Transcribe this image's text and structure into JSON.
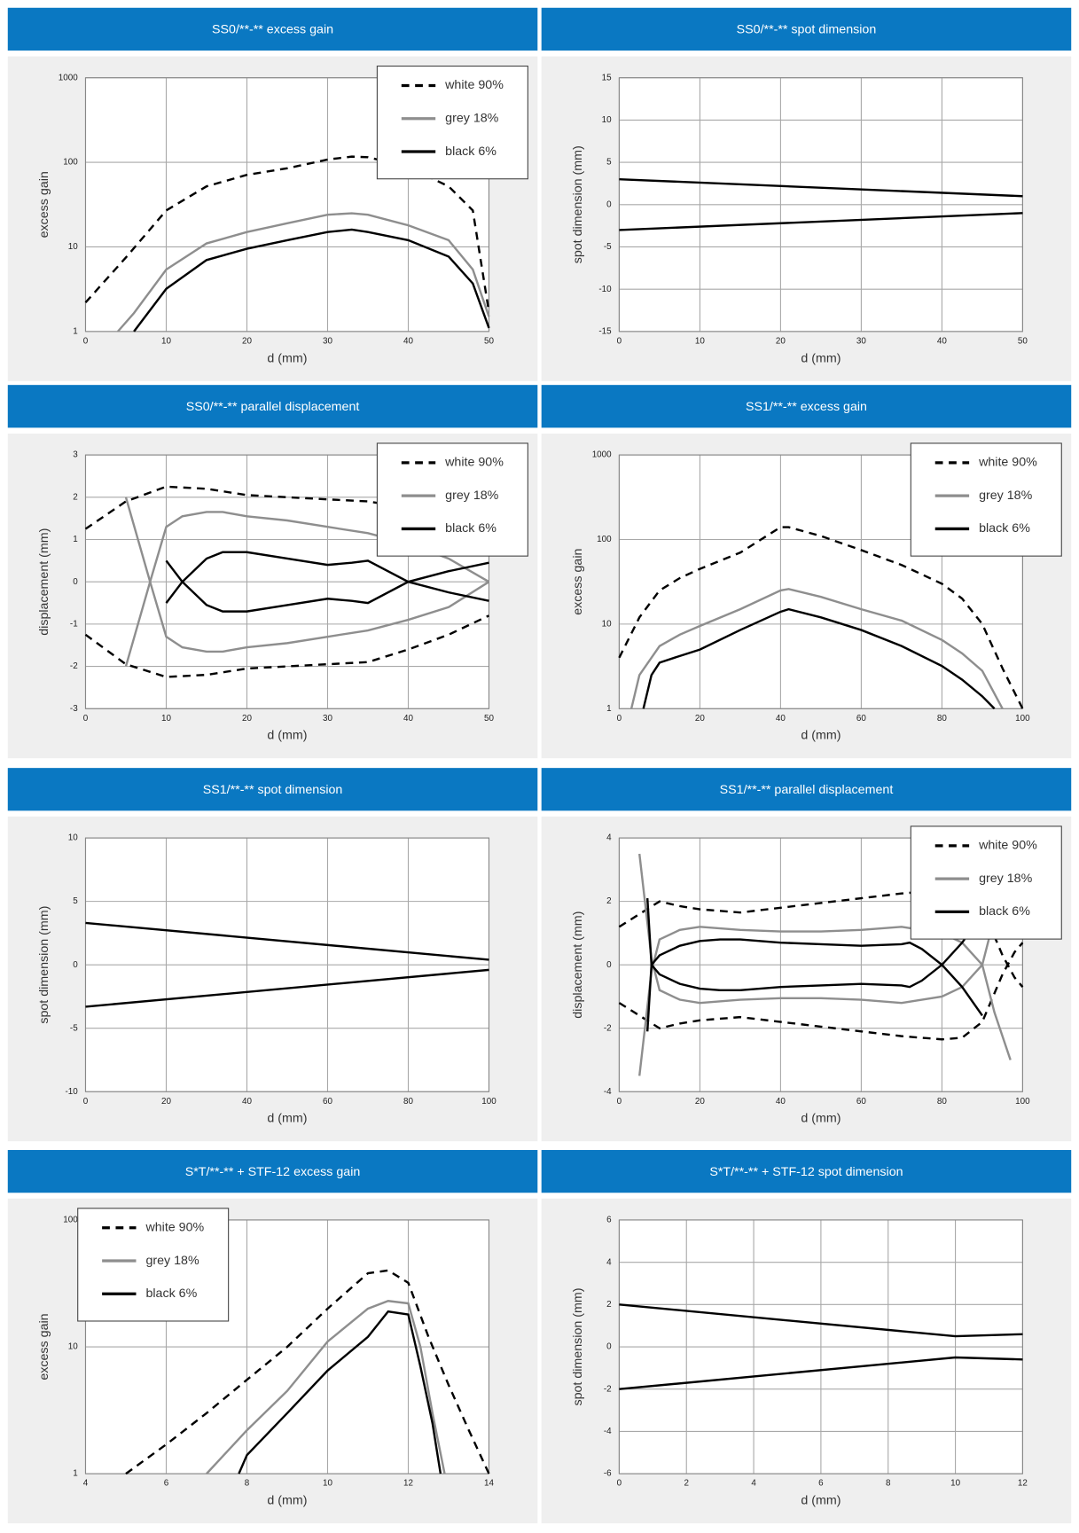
{
  "chart_data": [
    {
      "type": "line",
      "title": "SS0/**-** excess gain",
      "xlabel": "d (mm)",
      "ylabel": "excess gain",
      "xlim": [
        0,
        50
      ],
      "xticks": [
        0,
        10,
        20,
        30,
        40,
        50
      ],
      "ylim": [
        1,
        1000
      ],
      "yticks": [
        1,
        10,
        100,
        1000
      ],
      "yscale": "log",
      "grid": true,
      "legend": "upper right",
      "series": [
        {
          "name": "white 90%",
          "color": "#000000",
          "dash": "dashed",
          "x": [
            0,
            5,
            10,
            15,
            20,
            25,
            30,
            33,
            35,
            40,
            45,
            48,
            50
          ],
          "values": [
            2.2,
            7.5,
            27,
            52,
            71,
            85,
            108,
            117,
            115,
            88,
            52,
            27,
            1.7
          ]
        },
        {
          "name": "grey 18%",
          "color": "#8e8e8e",
          "dash": "solid",
          "x": [
            4,
            6,
            10,
            15,
            20,
            25,
            30,
            33,
            35,
            40,
            45,
            48,
            50
          ],
          "values": [
            1,
            1.65,
            5.4,
            11,
            15,
            19,
            24,
            25,
            24,
            18,
            12,
            5.4,
            1.5
          ]
        },
        {
          "name": "black 6%",
          "color": "#000000",
          "dash": "solid",
          "x": [
            6,
            10,
            15,
            20,
            25,
            30,
            33,
            35,
            40,
            45,
            48,
            50
          ],
          "values": [
            1,
            3.2,
            7,
            9.5,
            12,
            15,
            16,
            15,
            12,
            7.7,
            3.7,
            1.1
          ]
        }
      ]
    },
    {
      "type": "line",
      "title": "SS0/**-** spot dimension",
      "xlabel": "d (mm)",
      "ylabel": "spot dimension (mm)",
      "xlim": [
        0,
        50
      ],
      "xticks": [
        0,
        10,
        20,
        30,
        40,
        50
      ],
      "ylim": [
        -15,
        15
      ],
      "yticks": [
        -15,
        -10,
        -5,
        0,
        5,
        10,
        15
      ],
      "grid": true,
      "series": [
        {
          "color": "#000000",
          "dash": "solid",
          "x": [
            0,
            50
          ],
          "values": [
            3,
            1
          ]
        },
        {
          "color": "#000000",
          "dash": "solid",
          "x": [
            0,
            50
          ],
          "values": [
            -3,
            -1
          ]
        }
      ]
    },
    {
      "type": "line",
      "title": "SS0/**-** parallel displacement",
      "xlabel": "d (mm)",
      "ylabel": "displacement (mm)",
      "xlim": [
        0,
        50
      ],
      "xticks": [
        0,
        10,
        20,
        30,
        40,
        50
      ],
      "ylim": [
        -3,
        3
      ],
      "yticks": [
        -3,
        -2,
        -1,
        0,
        1,
        2,
        3
      ],
      "grid": true,
      "legend": "upper right",
      "series": [
        {
          "name": "white 90%",
          "color": "#000000",
          "dash": "dashed",
          "x": [
            0,
            5,
            10,
            15,
            20,
            30,
            35,
            40,
            45,
            50
          ],
          "values": [
            1.25,
            1.9,
            2.25,
            2.2,
            2.05,
            1.95,
            1.9,
            1.75,
            1.5,
            0.85
          ],
          "values_mirror": [
            -1.25,
            -1.95,
            -2.25,
            -2.2,
            -2.05,
            -1.95,
            -1.9,
            -1.6,
            -1.25,
            -0.8
          ]
        },
        {
          "name": "grey 18%",
          "color": "#8e8e8e",
          "dash": "solid",
          "x": [
            5,
            8,
            10,
            12,
            15,
            17,
            20,
            25,
            30,
            35,
            40,
            45,
            50
          ],
          "values": [
            2,
            0,
            -1.3,
            -1.55,
            -1.65,
            -1.65,
            -1.55,
            -1.45,
            -1.3,
            -1.15,
            -0.9,
            -0.6,
            0
          ],
          "values_mirror": [
            -2,
            0,
            1.3,
            1.55,
            1.65,
            1.65,
            1.55,
            1.45,
            1.3,
            1.15,
            0.9,
            0.55,
            0
          ]
        },
        {
          "name": "black 6%",
          "color": "#000000",
          "dash": "solid",
          "x": [
            10,
            12,
            15,
            17,
            20,
            25,
            30,
            33,
            35,
            40,
            45,
            50
          ],
          "values": [
            0.5,
            0,
            -0.55,
            -0.7,
            -0.7,
            -0.55,
            -0.4,
            -0.45,
            -0.5,
            0,
            0.25,
            0.45
          ],
          "values_mirror": [
            -0.5,
            0,
            0.55,
            0.7,
            0.7,
            0.55,
            0.4,
            0.45,
            0.5,
            0,
            -0.25,
            -0.45
          ]
        }
      ]
    },
    {
      "type": "line",
      "title": "SS1/**-** excess gain",
      "xlabel": "d (mm)",
      "ylabel": "excess gain",
      "xlim": [
        0,
        100
      ],
      "xticks": [
        0,
        20,
        40,
        60,
        80,
        100
      ],
      "ylim": [
        1,
        1000
      ],
      "yticks": [
        1,
        10,
        100,
        1000
      ],
      "yscale": "log",
      "grid": true,
      "legend": "upper right",
      "series": [
        {
          "name": "white 90%",
          "color": "#000000",
          "dash": "dashed",
          "x": [
            0,
            5,
            10,
            15,
            20,
            30,
            40,
            42,
            50,
            60,
            70,
            80,
            85,
            90,
            95,
            100
          ],
          "values": [
            4,
            12,
            25,
            35,
            45,
            70,
            140,
            140,
            110,
            75,
            50,
            30,
            20,
            10,
            3,
            1
          ]
        },
        {
          "name": "grey 18%",
          "color": "#8e8e8e",
          "dash": "solid",
          "x": [
            3,
            5,
            10,
            15,
            20,
            30,
            40,
            42,
            50,
            60,
            70,
            80,
            85,
            90,
            95
          ],
          "values": [
            1,
            2.5,
            5.5,
            7.5,
            9.5,
            15,
            25,
            26,
            21,
            15,
            11,
            6.5,
            4.5,
            2.8,
            1
          ]
        },
        {
          "name": "black 6%",
          "color": "#000000",
          "dash": "solid",
          "x": [
            6,
            8,
            10,
            15,
            20,
            30,
            40,
            42,
            50,
            60,
            70,
            80,
            85,
            90,
            93
          ],
          "values": [
            1,
            2.5,
            3.5,
            4.2,
            5,
            8.5,
            14,
            15,
            12,
            8.5,
            5.5,
            3.2,
            2.2,
            1.4,
            1
          ]
        }
      ]
    },
    {
      "type": "line",
      "title": "SS1/**-** spot dimension",
      "xlabel": "d (mm)",
      "ylabel": "spot dimension (mm)",
      "xlim": [
        0,
        100
      ],
      "xticks": [
        0,
        20,
        40,
        60,
        80,
        100
      ],
      "ylim": [
        -10,
        10
      ],
      "yticks": [
        -10,
        -5,
        0,
        5,
        10
      ],
      "grid": true,
      "series": [
        {
          "color": "#000000",
          "dash": "solid",
          "x": [
            0,
            100
          ],
          "values": [
            3.3,
            0.4
          ]
        },
        {
          "color": "#000000",
          "dash": "solid",
          "x": [
            0,
            100
          ],
          "values": [
            -3.3,
            -0.4
          ]
        }
      ]
    },
    {
      "type": "line",
      "title": "SS1/**-** parallel displacement",
      "xlabel": "d (mm)",
      "ylabel": "displacement (mm)",
      "xlim": [
        0,
        100
      ],
      "xticks": [
        0,
        20,
        40,
        60,
        80,
        100
      ],
      "ylim": [
        -4,
        4
      ],
      "yticks": [
        -4,
        -2,
        0,
        2,
        4
      ],
      "grid": true,
      "legend": "upper right",
      "series": [
        {
          "name": "white 90%",
          "color": "#000000",
          "dash": "dashed",
          "x": [
            0,
            5,
            10,
            15,
            20,
            30,
            40,
            50,
            60,
            70,
            80,
            85,
            90,
            95,
            98,
            100
          ],
          "values": [
            1.2,
            1.6,
            2,
            1.85,
            1.75,
            1.65,
            1.8,
            1.95,
            2.1,
            2.25,
            2.35,
            2.3,
            1.8,
            0.3,
            -0.4,
            -0.7
          ],
          "values_mirror": [
            -1.2,
            -1.6,
            -2,
            -1.85,
            -1.75,
            -1.65,
            -1.8,
            -1.95,
            -2.1,
            -2.25,
            -2.35,
            -2.3,
            -1.8,
            -0.3,
            0.4,
            0.7
          ]
        },
        {
          "name": "grey 18%",
          "color": "#8e8e8e",
          "dash": "solid",
          "x": [
            5,
            8,
            10,
            15,
            20,
            30,
            40,
            50,
            60,
            70,
            80,
            85,
            90,
            93,
            97
          ],
          "values": [
            -3.5,
            -0.2,
            0.8,
            1.1,
            1.2,
            1.1,
            1.05,
            1.05,
            1.1,
            1.2,
            1,
            0.7,
            0,
            -1.5,
            -3
          ],
          "values_mirror": [
            3.5,
            0.2,
            -0.8,
            -1.1,
            -1.2,
            -1.1,
            -1.05,
            -1.05,
            -1.1,
            -1.2,
            -1,
            -0.7,
            0,
            1.5,
            3
          ]
        },
        {
          "name": "black 6%",
          "color": "#000000",
          "dash": "solid",
          "x": [
            7,
            8,
            10,
            15,
            20,
            25,
            30,
            40,
            50,
            60,
            70,
            72,
            75,
            80,
            85,
            90
          ],
          "values": [
            2.1,
            0,
            -0.3,
            -0.6,
            -0.75,
            -0.8,
            -0.8,
            -0.7,
            -0.65,
            -0.6,
            -0.65,
            -0.7,
            -0.5,
            0,
            0.7,
            1.6
          ],
          "values_mirror": [
            -2.1,
            0,
            0.3,
            0.6,
            0.75,
            0.8,
            0.8,
            0.7,
            0.65,
            0.6,
            0.65,
            0.7,
            0.5,
            0,
            -0.7,
            -1.6
          ]
        }
      ]
    },
    {
      "type": "line",
      "title": "S*T/**-** + STF-12 excess gain",
      "xlabel": "d (mm)",
      "ylabel": "excess gain",
      "xlim": [
        4,
        14
      ],
      "xticks": [
        4,
        6,
        8,
        10,
        12,
        14
      ],
      "ylim": [
        1,
        100
      ],
      "yticks": [
        1,
        10,
        100
      ],
      "yscale": "log",
      "grid": true,
      "legend": "upper left",
      "series": [
        {
          "name": "white 90%",
          "color": "#000000",
          "dash": "dashed",
          "x": [
            5,
            6,
            7,
            8,
            9,
            10,
            11,
            11.5,
            12,
            12.5,
            13,
            13.5,
            14
          ],
          "values": [
            1,
            1.7,
            3,
            5.5,
            10,
            20,
            38,
            40,
            32,
            12,
            5,
            2.2,
            1
          ]
        },
        {
          "name": "grey 18%",
          "color": "#8e8e8e",
          "dash": "solid",
          "x": [
            7,
            8,
            9,
            10,
            11,
            11.5,
            12,
            12.3,
            12.6,
            12.9
          ],
          "values": [
            1,
            2.2,
            4.5,
            11,
            20,
            23,
            22,
            10,
            3,
            1
          ]
        },
        {
          "name": "black 6%",
          "color": "#000000",
          "dash": "solid",
          "x": [
            7.8,
            8,
            9,
            10,
            11,
            11.5,
            12,
            12.3,
            12.6,
            12.8
          ],
          "values": [
            1,
            1.4,
            3,
            6.5,
            12,
            19,
            18,
            7,
            2.5,
            1
          ]
        }
      ]
    },
    {
      "type": "line",
      "title": "S*T/**-** + STF-12 spot dimension",
      "xlabel": "d (mm)",
      "ylabel": "spot dimension (mm)",
      "xlim": [
        0,
        12
      ],
      "xticks": [
        0,
        2,
        4,
        6,
        8,
        10,
        12
      ],
      "ylim": [
        -6,
        6
      ],
      "yticks": [
        -6,
        -4,
        -2,
        0,
        2,
        4,
        6
      ],
      "grid": true,
      "series": [
        {
          "color": "#000000",
          "dash": "solid",
          "x": [
            0,
            10,
            12
          ],
          "values": [
            2,
            0.5,
            0.6
          ]
        },
        {
          "color": "#000000",
          "dash": "solid",
          "x": [
            0,
            10,
            12
          ],
          "values": [
            -2,
            -0.5,
            -0.6
          ]
        }
      ]
    }
  ]
}
